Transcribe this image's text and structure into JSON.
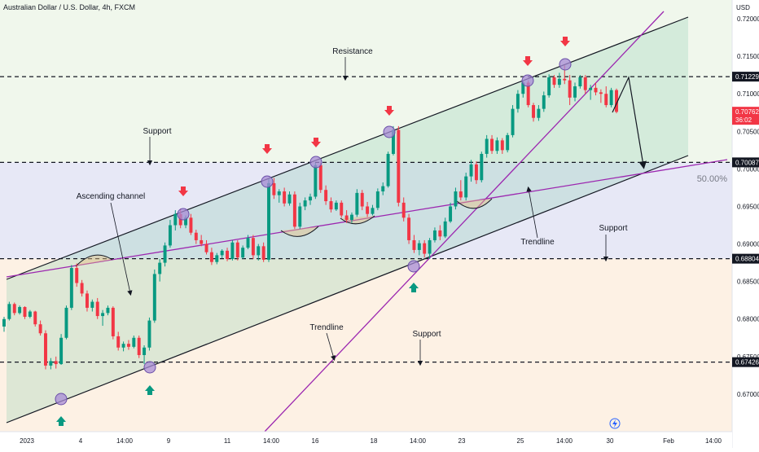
{
  "header": {
    "symbol": "Australian Dollar / U.S. Dollar, 4h, FXCM"
  },
  "colors": {
    "up": "#089981",
    "down": "#f23645",
    "channel": "#131722",
    "trendline": "#9c27b0",
    "marker": "#a78bd6",
    "axis_text": "#131722",
    "arrow_down": "#f23645",
    "arrow_up": "#089981",
    "fib": "#b2b5be"
  },
  "chart_data": {
    "type": "candlestick",
    "currency_label": "USD",
    "ylim": [
      0.665,
      0.7225
    ],
    "y_ticks": [
      "0.72000",
      "0.71500",
      "0.71000",
      "0.70500",
      "0.70000",
      "0.69500",
      "0.69000",
      "0.68500",
      "0.68000",
      "0.67500",
      "0.67000"
    ],
    "x_ticks": [
      "2023",
      "4",
      "14:00",
      "9",
      "11",
      "14:00",
      "16",
      "18",
      "14:00",
      "23",
      "25",
      "14:00",
      "30",
      "Feb",
      "14:00"
    ],
    "price_badges": [
      {
        "label": "0.71229",
        "value": 0.71229
      },
      {
        "label": "0.70762",
        "sublabel": "36:02",
        "value": 0.70762
      },
      {
        "label": "0.70087",
        "value": 0.70087
      },
      {
        "label": "0.68804",
        "value": 0.68804
      },
      {
        "label": "0.67426",
        "value": 0.67426
      }
    ],
    "horizontal_levels": [
      0.71229,
      0.70087,
      0.68804,
      0.67426
    ],
    "fib_label": "50.00%",
    "annotations": [
      "Resistance",
      "Support",
      "Ascending channel",
      "Trendline",
      "Support",
      "Trendline",
      "Support"
    ],
    "candles": [
      [
        0.679,
        0.6803,
        0.6783,
        0.68
      ],
      [
        0.68,
        0.6823,
        0.6798,
        0.682
      ],
      [
        0.682,
        0.6822,
        0.6805,
        0.6808
      ],
      [
        0.6808,
        0.6818,
        0.6806,
        0.6816
      ],
      [
        0.6816,
        0.6817,
        0.68,
        0.6803
      ],
      [
        0.6803,
        0.6812,
        0.6801,
        0.681
      ],
      [
        0.681,
        0.6811,
        0.679,
        0.6793
      ],
      [
        0.6793,
        0.6798,
        0.6778,
        0.6781
      ],
      [
        0.6781,
        0.6785,
        0.6733,
        0.6738
      ],
      [
        0.6738,
        0.6748,
        0.6733,
        0.6744
      ],
      [
        0.6744,
        0.675,
        0.6734,
        0.674
      ],
      [
        0.674,
        0.678,
        0.6739,
        0.6775
      ],
      [
        0.6775,
        0.6818,
        0.6773,
        0.6815
      ],
      [
        0.6815,
        0.6872,
        0.6812,
        0.6868
      ],
      [
        0.6868,
        0.6874,
        0.6843,
        0.6848
      ],
      [
        0.6848,
        0.6852,
        0.683,
        0.6834
      ],
      [
        0.6834,
        0.6838,
        0.681,
        0.6815
      ],
      [
        0.6815,
        0.6826,
        0.681,
        0.6823
      ],
      [
        0.6823,
        0.6828,
        0.68,
        0.6804
      ],
      [
        0.6804,
        0.6812,
        0.6791,
        0.6808
      ],
      [
        0.6808,
        0.6818,
        0.6805,
        0.6815
      ],
      [
        0.6815,
        0.6817,
        0.6773,
        0.6777
      ],
      [
        0.6777,
        0.6783,
        0.6758,
        0.6762
      ],
      [
        0.6762,
        0.677,
        0.6757,
        0.6767
      ],
      [
        0.6767,
        0.6772,
        0.6759,
        0.6763
      ],
      [
        0.6763,
        0.6778,
        0.6761,
        0.6775
      ],
      [
        0.6775,
        0.6778,
        0.6748,
        0.6752
      ],
      [
        0.6752,
        0.6765,
        0.674,
        0.6762
      ],
      [
        0.6762,
        0.6802,
        0.6758,
        0.6798
      ],
      [
        0.6798,
        0.6866,
        0.6795,
        0.686
      ],
      [
        0.686,
        0.688,
        0.685,
        0.6875
      ],
      [
        0.6875,
        0.6902,
        0.687,
        0.6898
      ],
      [
        0.6898,
        0.6932,
        0.6895,
        0.6925
      ],
      [
        0.6925,
        0.6945,
        0.6918,
        0.694
      ],
      [
        0.694,
        0.6947,
        0.6921,
        0.6925
      ],
      [
        0.6925,
        0.6938,
        0.6921,
        0.6935
      ],
      [
        0.6935,
        0.694,
        0.6912,
        0.6915
      ],
      [
        0.6915,
        0.6919,
        0.69,
        0.6905
      ],
      [
        0.6905,
        0.6912,
        0.6897,
        0.69
      ],
      [
        0.69,
        0.6905,
        0.6886,
        0.6889
      ],
      [
        0.6889,
        0.6895,
        0.6872,
        0.6876
      ],
      [
        0.6876,
        0.6888,
        0.6873,
        0.6885
      ],
      [
        0.6885,
        0.6893,
        0.6881,
        0.6891
      ],
      [
        0.6891,
        0.6895,
        0.6877,
        0.688
      ],
      [
        0.688,
        0.6905,
        0.6878,
        0.6902
      ],
      [
        0.6902,
        0.6905,
        0.6878,
        0.6882
      ],
      [
        0.6882,
        0.6898,
        0.688,
        0.6895
      ],
      [
        0.6895,
        0.6912,
        0.6893,
        0.6908
      ],
      [
        0.6908,
        0.6912,
        0.688,
        0.6885
      ],
      [
        0.6885,
        0.69,
        0.6878,
        0.6897
      ],
      [
        0.6897,
        0.6902,
        0.6876,
        0.6879
      ],
      [
        0.6879,
        0.6987,
        0.6876,
        0.6981
      ],
      [
        0.6981,
        0.6988,
        0.696,
        0.6965
      ],
      [
        0.6965,
        0.6973,
        0.6955,
        0.697
      ],
      [
        0.697,
        0.6975,
        0.695,
        0.6954
      ],
      [
        0.6954,
        0.697,
        0.6951,
        0.6966
      ],
      [
        0.6966,
        0.697,
        0.692,
        0.6923
      ],
      [
        0.6923,
        0.6955,
        0.692,
        0.695
      ],
      [
        0.695,
        0.6962,
        0.6945,
        0.6958
      ],
      [
        0.6958,
        0.6967,
        0.6952,
        0.6963
      ],
      [
        0.6963,
        0.7008,
        0.696,
        0.7005
      ],
      [
        0.7005,
        0.7008,
        0.6968,
        0.6972
      ],
      [
        0.6972,
        0.6978,
        0.6952,
        0.6957
      ],
      [
        0.6957,
        0.6962,
        0.6942,
        0.6946
      ],
      [
        0.6946,
        0.6958,
        0.6944,
        0.6955
      ],
      [
        0.6955,
        0.6958,
        0.6935,
        0.6938
      ],
      [
        0.6938,
        0.6945,
        0.6928,
        0.6932
      ],
      [
        0.6932,
        0.6942,
        0.6928,
        0.6939
      ],
      [
        0.6939,
        0.6973,
        0.6936,
        0.6968
      ],
      [
        0.6968,
        0.6972,
        0.6945,
        0.695
      ],
      [
        0.695,
        0.6956,
        0.6936,
        0.694
      ],
      [
        0.694,
        0.6952,
        0.6938,
        0.6948
      ],
      [
        0.6948,
        0.6974,
        0.6945,
        0.697
      ],
      [
        0.697,
        0.6982,
        0.6965,
        0.6977
      ],
      [
        0.6977,
        0.7023,
        0.6975,
        0.702
      ],
      [
        0.702,
        0.7057,
        0.7018,
        0.7052
      ],
      [
        0.7052,
        0.7057,
        0.695,
        0.6955
      ],
      [
        0.6955,
        0.6962,
        0.693,
        0.6935
      ],
      [
        0.6935,
        0.694,
        0.69,
        0.6905
      ],
      [
        0.6905,
        0.6912,
        0.6888,
        0.6892
      ],
      [
        0.6892,
        0.6905,
        0.6885,
        0.6901
      ],
      [
        0.6901,
        0.6905,
        0.6882,
        0.6887
      ],
      [
        0.6887,
        0.6908,
        0.688,
        0.6905
      ],
      [
        0.6905,
        0.6922,
        0.6902,
        0.6918
      ],
      [
        0.6918,
        0.6925,
        0.6905,
        0.691
      ],
      [
        0.691,
        0.6935,
        0.6908,
        0.693
      ],
      [
        0.693,
        0.6955,
        0.6928,
        0.695
      ],
      [
        0.695,
        0.6975,
        0.6946,
        0.697
      ],
      [
        0.697,
        0.6985,
        0.6958,
        0.6962
      ],
      [
        0.6962,
        0.6995,
        0.6958,
        0.699
      ],
      [
        0.699,
        0.7012,
        0.6983,
        0.7006
      ],
      [
        0.7006,
        0.701,
        0.698,
        0.6985
      ],
      [
        0.6985,
        0.7023,
        0.6982,
        0.702
      ],
      [
        0.702,
        0.7045,
        0.7015,
        0.704
      ],
      [
        0.704,
        0.7045,
        0.702,
        0.7024
      ],
      [
        0.7024,
        0.7042,
        0.702,
        0.7038
      ],
      [
        0.7038,
        0.7041,
        0.702,
        0.7025
      ],
      [
        0.7025,
        0.7048,
        0.7022,
        0.7045
      ],
      [
        0.7045,
        0.7085,
        0.7042,
        0.708
      ],
      [
        0.708,
        0.7105,
        0.7075,
        0.71
      ],
      [
        0.71,
        0.7118,
        0.7095,
        0.7115
      ],
      [
        0.7115,
        0.7118,
        0.7082,
        0.7085
      ],
      [
        0.7085,
        0.7088,
        0.7063,
        0.7068
      ],
      [
        0.7068,
        0.7085,
        0.7064,
        0.708
      ],
      [
        0.708,
        0.7103,
        0.7076,
        0.7098
      ],
      [
        0.7098,
        0.7126,
        0.7095,
        0.7122
      ],
      [
        0.7122,
        0.7125,
        0.7108,
        0.7112
      ],
      [
        0.7112,
        0.7128,
        0.7108,
        0.712
      ],
      [
        0.712,
        0.7138,
        0.7113,
        0.7118
      ],
      [
        0.7118,
        0.7125,
        0.7085,
        0.7095
      ],
      [
        0.7095,
        0.7115,
        0.709,
        0.711
      ],
      [
        0.711,
        0.7125,
        0.7107,
        0.7122
      ],
      [
        0.7122,
        0.7125,
        0.71,
        0.7105
      ],
      [
        0.7105,
        0.7112,
        0.7092,
        0.7108
      ],
      [
        0.7108,
        0.7115,
        0.7098,
        0.7102
      ],
      [
        0.7102,
        0.7106,
        0.7088,
        0.71
      ],
      [
        0.71,
        0.711,
        0.7082,
        0.7085
      ],
      [
        0.7085,
        0.7108,
        0.7082,
        0.7105
      ],
      [
        0.7105,
        0.7107,
        0.7074,
        0.7076
      ]
    ]
  }
}
